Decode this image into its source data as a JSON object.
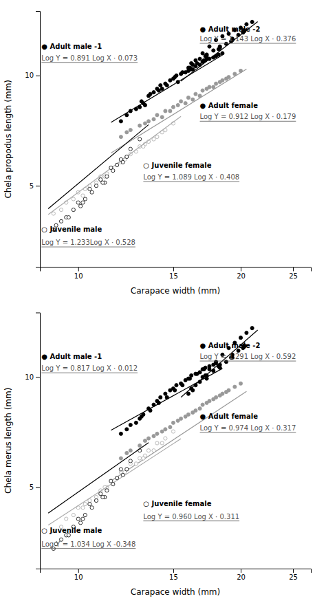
{
  "chart_data": [
    {
      "type": "scatter",
      "log": true,
      "xlabel": "Carapace width (mm)",
      "ylabel": "Chela propodus length (mm)",
      "xlim": [
        8.4918,
        26.977
      ],
      "ylim": [
        2.9992,
        14.997
      ],
      "xticks": [
        10,
        15,
        20,
        25
      ],
      "yticks": [
        5,
        10
      ],
      "series": [
        {
          "type": "scatter",
          "color": "black",
          "marker": "circle",
          "x": [
            12,
            12.5,
            13,
            13.2,
            13.5,
            13.8,
            14,
            14.2,
            14.5,
            14.8,
            15,
            15.2,
            15.5,
            15.8,
            16,
            16.2,
            16.5,
            16.8,
            17,
            17.2,
            17.5,
            17.8,
            18,
            18.2,
            18.5,
            12.3,
            13.1,
            14.1,
            15.1,
            16.1,
            17.1,
            12.8,
            13.6,
            14.6,
            15.6,
            16.6,
            13.3,
            14.3,
            15.3,
            16.3,
            17.3
          ],
          "values": [
            7.5,
            8.0,
            8.2,
            8.4,
            8.8,
            9.0,
            9.2,
            9.4,
            9.5,
            9.7,
            9.8,
            10.0,
            10.1,
            10.2,
            10.3,
            10.4,
            10.6,
            10.7,
            10.9,
            11.0,
            11.1,
            11.2,
            11.3,
            11.4,
            11.5,
            7.8,
            8.5,
            9.1,
            9.9,
            10.5,
            11.0,
            8.1,
            8.9,
            9.4,
            10.2,
            10.8,
            8.3,
            9.2,
            9.6,
            10.4,
            11.1
          ]
        },
        {
          "type": "line",
          "color": "black",
          "x": [
            11.5,
            18.5
          ],
          "values": [
            7.4487,
            11.378
          ]
        },
        {
          "type": "scatter",
          "color": "black",
          "marker": "circle",
          "x": [
            16,
            16.5,
            17,
            17.5,
            18,
            18.5,
            19,
            19.5,
            20,
            20.5,
            21,
            16.2,
            17.2,
            18.2,
            19.2,
            20.2,
            16.8,
            17.8,
            18.8,
            19.8,
            17.3,
            18.3,
            19.3,
            20.3,
            16.3,
            17.3,
            18.3,
            19.3,
            20.3
          ],
          "values": [
            10.5,
            11.0,
            11.5,
            12.0,
            12.5,
            12.8,
            13.0,
            13.3,
            13.5,
            13.8,
            14.0,
            10.8,
            11.3,
            11.8,
            12.4,
            13.1,
            11.1,
            11.7,
            12.2,
            12.9,
            11.4,
            12.0,
            12.6,
            13.3,
            10.7,
            11.3,
            11.9,
            12.5,
            13.2
          ]
        },
        {
          "type": "line",
          "color": "black",
          "x": [
            15.5,
            21.5
          ],
          "values": [
            9.6505,
            14.027
          ]
        },
        {
          "type": "scatter",
          "color": "#999999",
          "marker": "circle",
          "x": [
            12,
            12.5,
            13,
            13.5,
            14,
            14.5,
            15,
            15.5,
            16,
            16.5,
            17,
            17.5,
            18,
            18.5,
            19,
            19.5,
            20,
            12.3,
            13.3,
            14.3,
            15.3,
            16.3,
            17.3,
            18.3,
            13.8,
            14.8,
            15.8,
            16.8,
            17.8,
            18.8
          ],
          "values": [
            6.8,
            7.1,
            7.3,
            7.5,
            7.8,
            8.0,
            8.2,
            8.5,
            8.7,
            8.9,
            9.1,
            9.3,
            9.5,
            9.7,
            9.9,
            10.1,
            10.3,
            7.0,
            7.4,
            7.7,
            8.3,
            8.6,
            9.2,
            9.6,
            7.6,
            8.0,
            8.4,
            8.8,
            9.3,
            9.8
          ]
        },
        {
          "type": "line",
          "color": "#999999",
          "x": [
            11.5,
            20.5
          ],
          "values": [
            6.1427,
            10.407
          ]
        },
        {
          "type": "scatter",
          "color": "#aaaaaa",
          "marker": "open-circle",
          "x": [
            9,
            9.5,
            10,
            10.5,
            11,
            11.5,
            12,
            12.5,
            13,
            13.5,
            14,
            14.5,
            15,
            9.3,
            10.3,
            11.3,
            12.3,
            13.3,
            14.3,
            9.8,
            10.8,
            11.8,
            12.8,
            13.8,
            10.2,
            11.2,
            12.2,
            13.2
          ],
          "values": [
            4.2,
            4.5,
            4.8,
            5.0,
            5.3,
            5.6,
            5.8,
            6.1,
            6.4,
            6.6,
            6.8,
            7.1,
            7.4,
            4.3,
            4.9,
            5.4,
            6.0,
            6.5,
            7.0,
            4.6,
            5.1,
            5.7,
            6.2,
            6.7,
            4.7,
            5.3,
            5.9,
            6.4
          ]
        },
        {
          "type": "line",
          "color": "#aaaaaa",
          "x": [
            8.8,
            15.5
          ],
          "values": [
            4.1739,
            7.7317
          ]
        },
        {
          "type": "scatter",
          "color": "black",
          "marker": "open-circle",
          "x": [
            9,
            9.5,
            10,
            10.5,
            11,
            11.5,
            12,
            12.5,
            13,
            9.3,
            10.3,
            11.3,
            12.3,
            9.8,
            10.8,
            11.8,
            10.2,
            11.2,
            9.6,
            10.6,
            11.6,
            9.1,
            10.1,
            11.1,
            12.1
          ],
          "values": [
            3.8,
            4.1,
            4.5,
            4.9,
            5.2,
            5.6,
            5.9,
            6.3,
            6.7,
            4.0,
            4.6,
            5.3,
            6.0,
            4.3,
            5.0,
            5.7,
            4.5,
            5.1,
            4.1,
            4.8,
            5.5,
            3.9,
            4.4,
            5.1,
            5.8
          ]
        },
        {
          "type": "line",
          "color": "black",
          "x": [
            8.8,
            13.5
          ],
          "values": [
            4.3306,
            7.3401
          ]
        }
      ],
      "annotations": [
        {
          "text": "● Adult male -1",
          "x": 8.55,
          "y": 11.8
        },
        {
          "text": "Log Y = 0.891 Log X · 0.073",
          "x": 8.55,
          "y": 11.0
        },
        {
          "text": "● Adult male -2",
          "x": 16.8,
          "y": 13.2
        },
        {
          "text": "Log Y = 1.143 Log X · 0.376",
          "x": 16.8,
          "y": 12.4
        },
        {
          "text": "● Adult female",
          "x": 16.8,
          "y": 8.15
        },
        {
          "text": "Log Y = 0.912 Log X · 0.179",
          "x": 16.8,
          "y": 7.6
        },
        {
          "text": "○ Juvenile female",
          "x": 13.2,
          "y": 5.6
        },
        {
          "text": "Log Y = 1.089 Log X · 0.408",
          "x": 13.2,
          "y": 5.2
        },
        {
          "text": "○ Juvenile male",
          "x": 8.55,
          "y": 3.75
        },
        {
          "text": "Log Y = 1.233Log X · 0.528",
          "x": 8.55,
          "y": 3.45
        }
      ]
    },
    {
      "type": "scatter",
      "log": true,
      "xlabel": "Carapace width (mm)",
      "ylabel": "Chela merus length (mm)",
      "xlim": [
        8.4918,
        26.977
      ],
      "ylim": [
        2.9992,
        14.997
      ],
      "xticks": [
        10,
        15,
        20,
        25
      ],
      "yticks": [
        5,
        10
      ],
      "series": [
        {
          "type": "scatter",
          "color": "black",
          "marker": "circle",
          "x": [
            12,
            12.5,
            13,
            13.2,
            13.5,
            13.8,
            14,
            14.2,
            14.5,
            14.8,
            15,
            15.2,
            15.5,
            15.8,
            16,
            16.2,
            16.5,
            16.8,
            17,
            17.2,
            17.5,
            17.8,
            18,
            12.3,
            13.1,
            14.1,
            15.1,
            16.1,
            17.1,
            12.8,
            13.6,
            14.6,
            15.6,
            16.6
          ],
          "values": [
            7.0,
            7.4,
            7.7,
            7.9,
            8.2,
            8.4,
            8.6,
            8.8,
            9.0,
            9.2,
            9.3,
            9.5,
            9.6,
            9.8,
            9.9,
            10.1,
            10.2,
            10.3,
            10.5,
            10.6,
            10.7,
            10.8,
            10.9,
            7.2,
            7.8,
            8.5,
            9.2,
            9.9,
            10.5,
            7.5,
            8.1,
            8.8,
            9.5,
            10.2
          ]
        },
        {
          "type": "line",
          "color": "black",
          "x": [
            11.5,
            18.5
          ],
          "values": [
            7.1547,
            10.551
          ]
        },
        {
          "type": "scatter",
          "color": "black",
          "marker": "circle",
          "x": [
            16,
            16.5,
            17,
            17.5,
            18,
            18.5,
            19,
            19.5,
            20,
            20.5,
            21,
            16.2,
            17.2,
            18.2,
            19.2,
            20.2,
            16.8,
            17.8,
            18.8,
            19.8,
            17.3,
            18.3,
            19.3,
            20.3,
            16.3,
            17.3,
            18.3,
            19.3,
            20.3
          ],
          "values": [
            9.0,
            9.5,
            10.0,
            10.5,
            11.0,
            11.5,
            12.0,
            12.4,
            12.8,
            13.2,
            13.6,
            9.3,
            10.1,
            10.7,
            11.3,
            12.0,
            9.7,
            10.4,
            11.0,
            11.8,
            10.1,
            10.8,
            11.5,
            12.2,
            9.2,
            9.9,
            10.6,
            11.3,
            12.1
          ]
        },
        {
          "type": "line",
          "color": "black",
          "x": [
            15.5,
            21.5
          ],
          "values": [
            8.8048,
            13.433
          ]
        },
        {
          "type": "scatter",
          "color": "#999999",
          "marker": "circle",
          "x": [
            12,
            12.5,
            13,
            13.5,
            14,
            14.5,
            15,
            15.5,
            16,
            16.5,
            17,
            17.5,
            18,
            18.5,
            19,
            19.5,
            20,
            12.3,
            13.3,
            14.3,
            15.3,
            16.3,
            17.3,
            18.3,
            13.8,
            14.8,
            15.8,
            16.8,
            17.8,
            18.8
          ],
          "values": [
            6.0,
            6.3,
            6.5,
            6.8,
            7.0,
            7.2,
            7.5,
            7.7,
            7.9,
            8.1,
            8.4,
            8.6,
            8.8,
            9.0,
            9.2,
            9.4,
            9.6,
            6.2,
            6.7,
            7.1,
            7.6,
            8.0,
            8.5,
            8.9,
            6.9,
            7.3,
            7.8,
            8.2,
            8.7,
            9.1
          ]
        },
        {
          "type": "line",
          "color": "#999999",
          "x": [
            11.5,
            20.5
          ],
          "values": [
            5.2014,
            9.1337
          ]
        },
        {
          "type": "scatter",
          "color": "#aaaaaa",
          "marker": "open-circle",
          "x": [
            9,
            9.5,
            10,
            10.5,
            11,
            11.5,
            12,
            12.5,
            13,
            13.5,
            14,
            14.5,
            15,
            9.3,
            10.3,
            11.3,
            12.3,
            13.3,
            14.3,
            9.8,
            10.8,
            11.8,
            12.8,
            13.8,
            10.2,
            11.2,
            12.2,
            13.2
          ],
          "values": [
            3.8,
            4.1,
            4.4,
            4.6,
            4.9,
            5.2,
            5.5,
            5.8,
            6.0,
            6.3,
            6.6,
            6.8,
            7.1,
            3.9,
            4.5,
            5.0,
            5.6,
            6.1,
            6.6,
            4.2,
            4.7,
            5.3,
            5.8,
            6.3,
            4.4,
            5.0,
            5.5,
            6.0
          ]
        },
        {
          "type": "line",
          "color": "#aaaaaa",
          "x": [
            8.8,
            15.5
          ],
          "values": [
            3.9419,
            6.7876
          ]
        },
        {
          "type": "scatter",
          "color": "black",
          "marker": "open-circle",
          "x": [
            9,
            9.5,
            10,
            10.5,
            11,
            11.5,
            12,
            12.5,
            13,
            9.3,
            10.3,
            11.3,
            12.3,
            9.8,
            10.8,
            11.8,
            10.2,
            11.2,
            9.6,
            10.6,
            11.6,
            9.1,
            10.1,
            11.1,
            12.1
          ],
          "values": [
            3.4,
            3.7,
            4.1,
            4.5,
            4.8,
            5.2,
            5.6,
            5.9,
            6.3,
            3.6,
            4.2,
            4.9,
            5.6,
            3.9,
            4.6,
            5.3,
            4.1,
            4.7,
            3.7,
            4.4,
            5.1,
            3.5,
            4.0,
            4.7,
            5.4
          ]
        },
        {
          "type": "line",
          "color": "black",
          "x": [
            8.8,
            13.5
          ],
          "values": [
            4.252,
            6.6186
          ]
        }
      ],
      "annotations": [
        {
          "text": "● Adult male -1",
          "x": 8.55,
          "y": 11.2
        },
        {
          "text": "Log Y = 0.817 Log X · 0.012",
          "x": 8.55,
          "y": 10.4
        },
        {
          "text": "● Adult male -2",
          "x": 16.8,
          "y": 12.0
        },
        {
          "text": "Log Y = 1.291 Log X · 0.592",
          "x": 16.8,
          "y": 11.2
        },
        {
          "text": "● Adult female",
          "x": 16.8,
          "y": 7.7
        },
        {
          "text": "Log Y = 0.974 Log X · 0.317",
          "x": 16.8,
          "y": 7.15
        },
        {
          "text": "○ Juvenile female",
          "x": 13.2,
          "y": 4.45
        },
        {
          "text": "Log Y = 0.960 Log X · 0.311",
          "x": 13.2,
          "y": 4.1
        },
        {
          "text": "○ Juvenile male",
          "x": 8.55,
          "y": 3.75
        },
        {
          "text": "Log Y = 1.034 Log X -0.348",
          "x": 8.55,
          "y": 3.45
        }
      ]
    }
  ]
}
